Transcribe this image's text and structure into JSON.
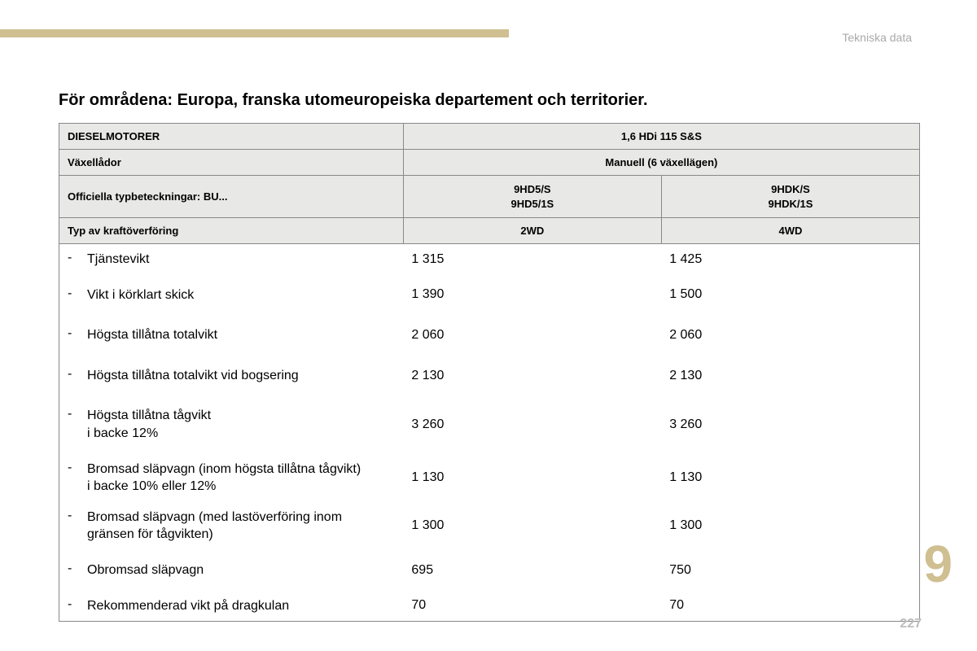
{
  "colors": {
    "accent": "#cfbf91",
    "header_bg": "#e8e8e6",
    "border": "#888888",
    "muted_text": "#a9a9a9",
    "pagenum": "#bdbdbd",
    "background": "#ffffff",
    "text": "#000000"
  },
  "section_label": "Tekniska data",
  "title": "För områdena: Europa, franska utomeuropeiska departement och territorier.",
  "chapter_number": "9",
  "page_number": "227",
  "table": {
    "col_widths_pct": [
      40,
      30,
      30
    ],
    "header_rows": [
      {
        "left": "DIESELMOTORER",
        "right": "1,6 HDi 115 S&S",
        "right_colspan": 2
      },
      {
        "left": "Växellådor",
        "right": "Manuell (6 växellägen)",
        "right_colspan": 2
      },
      {
        "left": "Officiella typbeteckningar: BU...",
        "c1": "9HD5/S\n9HD5/1S",
        "c2": "9HDK/S\n9HDK/1S"
      },
      {
        "left": "Typ av kraftöverföring",
        "c1": "2WD",
        "c2": "4WD"
      }
    ],
    "rows": [
      {
        "label": "Tjänstevikt",
        "c1": "1 315",
        "c2": "1 425"
      },
      {
        "label": "Vikt i körklart skick",
        "c1": "1 390",
        "c2": "1 500",
        "tall": true
      },
      {
        "label": "Högsta tillåtna totalvikt",
        "c1": "2 060",
        "c2": "2 060",
        "tall": true
      },
      {
        "label": "Högsta tillåtna totalvikt vid bogsering",
        "c1": "2 130",
        "c2": "2 130",
        "tall": true
      },
      {
        "label": "Högsta tillåtna tågvikt\ni backe 12%",
        "c1": "3 260",
        "c2": "3 260",
        "tall": true
      },
      {
        "label": "Bromsad släpvagn (inom högsta tillåtna tågvikt)\ni backe 10% eller 12%",
        "c1": "1 130",
        "c2": "1 130"
      },
      {
        "label": "Bromsad släpvagn (med lastöverföring inom\ngränsen för tågvikten)",
        "c1": "1 300",
        "c2": "1 300"
      },
      {
        "label": "Obromsad släpvagn",
        "c1": "695",
        "c2": "750",
        "tall": true
      },
      {
        "label": "Rekommenderad vikt på dragkulan",
        "c1": "70",
        "c2": "70"
      }
    ]
  }
}
